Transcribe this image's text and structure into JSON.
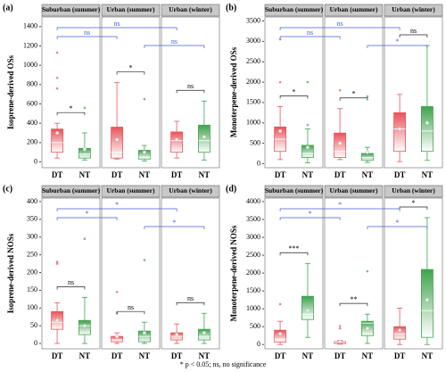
{
  "chart_data": [
    {
      "type": "box",
      "panel_label": "(a)",
      "y_label": "Isoprene-derived OSs",
      "categories": [
        "DT",
        "NT"
      ],
      "colors": [
        "#e8545a",
        "#3fa34d"
      ],
      "comparison_color": "#4a5fd6",
      "ylim": [
        -60,
        1500
      ],
      "yticks": [
        0,
        200,
        400,
        600,
        800,
        1000,
        1200,
        1400
      ],
      "facets": [
        {
          "name": "Suburban (summer)",
          "within": "*",
          "boxes": [
            {
              "min": 40,
              "q1": 100,
              "median": 200,
              "q3": 340,
              "max": 400,
              "mean": 300,
              "outliers": [
                1130,
                870,
                760
              ]
            },
            {
              "min": 20,
              "q1": 40,
              "median": 80,
              "q3": 140,
              "max": 300,
              "mean": 130,
              "outliers": [
                560
              ]
            }
          ]
        },
        {
          "name": "Urban (summer)",
          "within": "*",
          "boxes": [
            {
              "min": 30,
              "q1": 40,
              "median": 100,
              "q3": 360,
              "max": 820,
              "mean": 230,
              "outliers": []
            },
            {
              "min": 10,
              "q1": 30,
              "median": 50,
              "q3": 120,
              "max": 170,
              "mean": 100,
              "outliers": [
                650
              ]
            }
          ]
        },
        {
          "name": "Urban (winter)",
          "within": "ns",
          "boxes": [
            {
              "min": 40,
              "q1": 100,
              "median": 220,
              "q3": 310,
              "max": 420,
              "mean": 230,
              "outliers": []
            },
            {
              "min": 20,
              "q1": 100,
              "median": 220,
              "q3": 380,
              "max": 630,
              "mean": 260,
              "outliers": []
            }
          ]
        }
      ],
      "comparisons": [
        {
          "from": [
            0,
            0
          ],
          "to": [
            2,
            0
          ],
          "label": "ns"
        },
        {
          "from": [
            0,
            0
          ],
          "to": [
            1,
            0
          ],
          "label": "ns"
        },
        {
          "from": [
            1,
            1
          ],
          "to": [
            2,
            1
          ],
          "label": "ns"
        }
      ]
    },
    {
      "type": "box",
      "panel_label": "(b)",
      "y_label": "Monoterpene-derived OSs",
      "categories": [
        "DT",
        "NT"
      ],
      "colors": [
        "#e8545a",
        "#3fa34d"
      ],
      "comparison_color": "#4a5fd6",
      "ylim": [
        -100,
        3600
      ],
      "yticks": [
        0,
        500,
        1000,
        1500,
        2000,
        2500,
        3000,
        3500
      ],
      "facets": [
        {
          "name": "Suburban (summer)",
          "within": "*",
          "boxes": [
            {
              "min": 100,
              "q1": 300,
              "median": 600,
              "q3": 900,
              "max": 1400,
              "mean": 800,
              "outliers": [
                3050,
                2000
              ]
            },
            {
              "min": 20,
              "q1": 150,
              "median": 250,
              "q3": 450,
              "max": 850,
              "mean": 400,
              "outliers": [
                2000,
                950
              ]
            }
          ]
        },
        {
          "name": "Urban (summer)",
          "within": "*",
          "boxes": [
            {
              "min": 100,
              "q1": 150,
              "median": 300,
              "q3": 750,
              "max": 1350,
              "mean": 500,
              "outliers": [
                1800
              ]
            },
            {
              "min": 30,
              "q1": 80,
              "median": 150,
              "q3": 250,
              "max": 400,
              "mean": 280,
              "outliers": [
                1650
              ]
            }
          ]
        },
        {
          "name": "Urban (winter)",
          "within": "ns",
          "boxes": [
            {
              "min": 50,
              "q1": 300,
              "median": 850,
              "q3": 1250,
              "max": 1700,
              "mean": 850,
              "outliers": []
            },
            {
              "min": 80,
              "q1": 300,
              "median": 800,
              "q3": 1400,
              "max": 2900,
              "mean": 1000,
              "outliers": []
            }
          ]
        }
      ],
      "comparisons": [
        {
          "from": [
            0,
            0
          ],
          "to": [
            2,
            0
          ],
          "label": "ns"
        },
        {
          "from": [
            0,
            0
          ],
          "to": [
            1,
            0
          ],
          "label": "ns"
        },
        {
          "from": [
            1,
            1
          ],
          "to": [
            2,
            1
          ],
          "label": "*"
        }
      ]
    },
    {
      "type": "box",
      "panel_label": "(c)",
      "y_label": "Isoprene-derived NOSs",
      "categories": [
        "DT",
        "NT"
      ],
      "colors": [
        "#e8545a",
        "#3fa34d"
      ],
      "comparison_color": "#4a5fd6",
      "ylim": [
        -15,
        410
      ],
      "yticks": [
        0,
        50,
        100,
        150,
        200,
        250,
        300,
        350,
        400
      ],
      "facets": [
        {
          "name": "Suburban (summer)",
          "within": "ns",
          "boxes": [
            {
              "min": 0,
              "q1": 40,
              "median": 60,
              "q3": 90,
              "max": 115,
              "mean": 65,
              "outliers": [
                230,
                225
              ]
            },
            {
              "min": 0,
              "q1": 25,
              "median": 50,
              "q3": 65,
              "max": 130,
              "mean": 50,
              "outliers": [
                295
              ]
            }
          ]
        },
        {
          "name": "Urban (summer)",
          "within": "ns",
          "boxes": [
            {
              "min": 0,
              "q1": 5,
              "median": 10,
              "q3": 20,
              "max": 30,
              "mean": 20,
              "outliers": [
                145,
                85
              ]
            },
            {
              "min": 0,
              "q1": 5,
              "median": 20,
              "q3": 35,
              "max": 60,
              "mean": 30,
              "outliers": [
                235
              ]
            }
          ]
        },
        {
          "name": "Urban (winter)",
          "within": "ns",
          "boxes": [
            {
              "min": 0,
              "q1": 10,
              "median": 20,
              "q3": 30,
              "max": 55,
              "mean": 25,
              "outliers": []
            },
            {
              "min": 0,
              "q1": 10,
              "median": 20,
              "q3": 40,
              "max": 85,
              "mean": 30,
              "outliers": []
            }
          ]
        }
      ],
      "comparisons": [
        {
          "from": [
            0,
            0
          ],
          "to": [
            2,
            0
          ],
          "label": "*"
        },
        {
          "from": [
            0,
            0
          ],
          "to": [
            1,
            0
          ],
          "label": "*"
        },
        {
          "from": [
            1,
            1
          ],
          "to": [
            2,
            1
          ],
          "label": "*"
        }
      ]
    },
    {
      "type": "box",
      "panel_label": "(d)",
      "y_label": "Monoterpene-derived NOSs",
      "categories": [
        "DT",
        "NT"
      ],
      "colors": [
        "#e8545a",
        "#3fa34d"
      ],
      "comparison_color": "#4a5fd6",
      "ylim": [
        -120,
        4100
      ],
      "yticks": [
        0,
        500,
        1000,
        1500,
        2000,
        2500,
        3000,
        3500,
        4000
      ],
      "facets": [
        {
          "name": "Suburban (summer)",
          "within": "***",
          "boxes": [
            {
              "min": 0,
              "q1": 70,
              "median": 150,
              "q3": 400,
              "max": 650,
              "mean": 300,
              "outliers": [
                1130
              ]
            },
            {
              "min": 200,
              "q1": 700,
              "median": 850,
              "q3": 1350,
              "max": 2270,
              "mean": 950,
              "outliers": []
            }
          ]
        },
        {
          "name": "Urban (summer)",
          "within": "**",
          "boxes": [
            {
              "min": 10,
              "q1": 30,
              "median": 60,
              "q3": 80,
              "max": 120,
              "mean": 80,
              "outliers": [
                520,
                450
              ]
            },
            {
              "min": 30,
              "q1": 250,
              "median": 600,
              "q3": 650,
              "max": 850,
              "mean": 450,
              "outliers": [
                2050
              ]
            }
          ]
        },
        {
          "name": "Urban (winter)",
          "within": "*",
          "boxes": [
            {
              "min": 0,
              "q1": 150,
              "median": 300,
              "q3": 500,
              "max": 1020,
              "mean": 400,
              "outliers": []
            },
            {
              "min": 0,
              "q1": 200,
              "median": 950,
              "q3": 2100,
              "max": 3550,
              "mean": 1250,
              "outliers": []
            }
          ]
        }
      ],
      "comparisons": [
        {
          "from": [
            0,
            0
          ],
          "to": [
            2,
            0
          ],
          "label": "*"
        },
        {
          "from": [
            0,
            0
          ],
          "to": [
            1,
            0
          ],
          "label": "*"
        },
        {
          "from": [
            1,
            1
          ],
          "to": [
            2,
            1
          ],
          "label": "*"
        }
      ]
    }
  ],
  "footnote": "* p < 0.05; ns, no significance"
}
